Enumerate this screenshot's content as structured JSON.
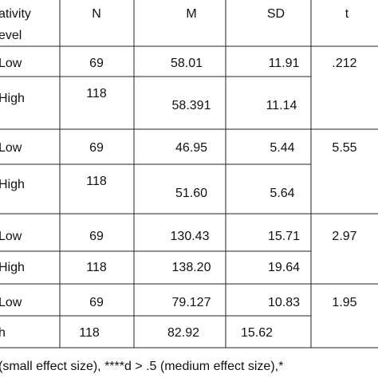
{
  "table": {
    "header": [
      "ativity",
      "evel",
      "N",
      "M",
      "SD",
      "t"
    ],
    "rows": [
      {
        "label": "Low",
        "n": "69",
        "m": "58.01",
        "sd": "11.91",
        "t": ".212"
      },
      {
        "label": "High",
        "n": "118",
        "m": "58.391",
        "sd": "11.14"
      },
      {
        "label": "Low",
        "n": "69",
        "m": "46.95",
        "sd": "5.44",
        "t": "5.55"
      },
      {
        "label": "High",
        "n": "118",
        "m": "51.60",
        "sd": "5.64"
      },
      {
        "label": "Low",
        "n": "69",
        "m": "130.43",
        "sd": "15.71",
        "t": "2.97"
      },
      {
        "label": "High",
        "n": "118",
        "m": "138.20",
        "sd": "19.64"
      },
      {
        "label": "Low",
        "n": "69",
        "m": "79.127",
        "sd": "10.83",
        "t": "1.95"
      },
      {
        "label": "h",
        "n": "118",
        "m": "82.92",
        "sd": "15.62"
      }
    ],
    "footnote": "(small effect size), ****d > .5 (medium effect size),*"
  }
}
